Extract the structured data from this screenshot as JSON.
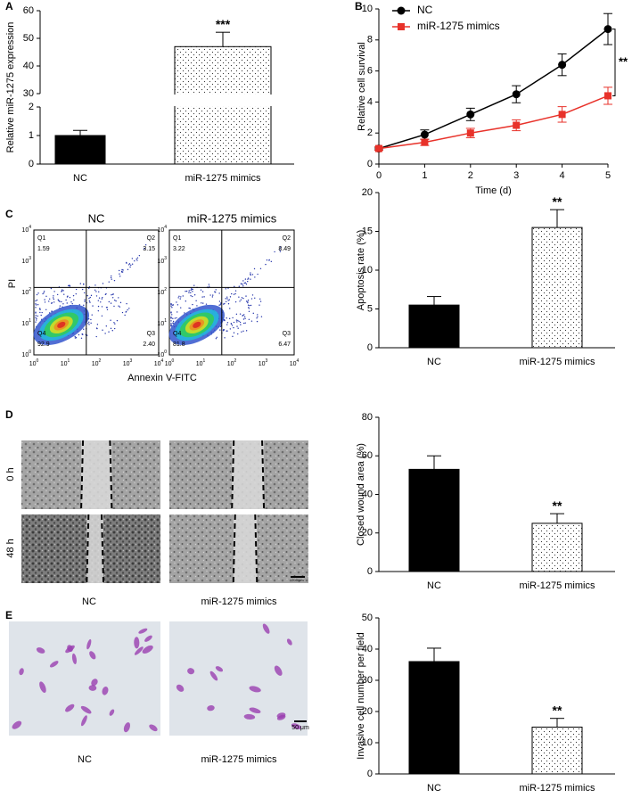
{
  "panel_labels": [
    "A",
    "B",
    "C",
    "D",
    "E"
  ],
  "chart_data": [
    {
      "type": "bar",
      "ylabel": "Relative miR-1275 expression",
      "categories": [
        "NC",
        "miR-1275 mimics"
      ],
      "values": [
        1,
        47
      ],
      "errors": [
        0.18,
        5.2
      ],
      "colors": [
        "#000000",
        "#ffffff"
      ],
      "patterns": [
        "solid",
        "dots"
      ],
      "ylim_segments": [
        [
          0,
          2
        ],
        [
          30,
          60
        ]
      ],
      "yticks": [
        0,
        1,
        2,
        30,
        40,
        50,
        60
      ],
      "significance": "***"
    },
    {
      "type": "line",
      "xlabel": "Time (d)",
      "ylabel": "Relative cell survival",
      "x": [
        0,
        1,
        2,
        3,
        4,
        5
      ],
      "xlim": [
        0,
        5
      ],
      "xticks": [
        0,
        1,
        2,
        3,
        4,
        5
      ],
      "ylim": [
        0,
        10
      ],
      "yticks": [
        0,
        2,
        4,
        6,
        8,
        10
      ],
      "legend": "upper left",
      "significance": "**",
      "series": [
        {
          "name": "NC",
          "color": "#000000",
          "marker": "circle",
          "values": [
            1,
            1.9,
            3.2,
            4.5,
            6.4,
            8.7
          ],
          "errors": [
            0.1,
            0.3,
            0.4,
            0.55,
            0.7,
            1.0
          ]
        },
        {
          "name": "miR-1275 mimics",
          "color": "#e8322a",
          "marker": "square",
          "values": [
            1,
            1.4,
            2.0,
            2.5,
            3.2,
            4.4
          ],
          "errors": [
            0.1,
            0.2,
            0.3,
            0.35,
            0.5,
            0.55
          ]
        }
      ]
    },
    {
      "type": "bar",
      "ylabel": "Apoptosis rate (%)",
      "categories": [
        "NC",
        "miR-1275 mimics"
      ],
      "values": [
        5.5,
        15.5
      ],
      "errors": [
        1.1,
        2.3
      ],
      "colors": [
        "#000000",
        "#ffffff"
      ],
      "patterns": [
        "solid",
        "dots"
      ],
      "ylim": [
        0,
        20
      ],
      "yticks": [
        0,
        5,
        10,
        15,
        20
      ],
      "significance": "**"
    },
    {
      "type": "bar",
      "ylabel": "Closed wound area (%)",
      "categories": [
        "NC",
        "miR-1275 mimics"
      ],
      "values": [
        53,
        25
      ],
      "errors": [
        7,
        5
      ],
      "colors": [
        "#000000",
        "#ffffff"
      ],
      "patterns": [
        "solid",
        "dots"
      ],
      "ylim": [
        0,
        80
      ],
      "yticks": [
        0,
        20,
        40,
        60,
        80
      ],
      "significance": "**"
    },
    {
      "type": "bar",
      "ylabel": "Invasive cell number per field",
      "categories": [
        "NC",
        "miR-1275 mimics"
      ],
      "values": [
        36,
        15
      ],
      "errors": [
        4.3,
        2.8
      ],
      "colors": [
        "#000000",
        "#ffffff"
      ],
      "patterns": [
        "solid",
        "dots"
      ],
      "ylim": [
        0,
        50
      ],
      "yticks": [
        0,
        10,
        20,
        30,
        40,
        50
      ],
      "significance": "**"
    }
  ],
  "flow": {
    "ylabel": "PI",
    "xlabel": "Annexin V-FITC",
    "tick_base": "10",
    "tick_exponents": [
      "0",
      "1",
      "2",
      "3",
      "4"
    ],
    "plots": [
      {
        "title": "NC",
        "quadrants": [
          {
            "label": "Q1",
            "value": "1.59"
          },
          {
            "label": "Q2",
            "value": "3.15"
          },
          {
            "label": "Q4",
            "value": "92.9"
          },
          {
            "label": "Q3",
            "value": "2.40"
          }
        ]
      },
      {
        "title": "miR-1275 mimics",
        "quadrants": [
          {
            "label": "Q1",
            "value": "3.22"
          },
          {
            "label": "Q2",
            "value": "8.49"
          },
          {
            "label": "Q4",
            "value": "81.8"
          },
          {
            "label": "Q3",
            "value": "6.47"
          }
        ]
      }
    ]
  },
  "wound": {
    "rows": [
      "0 h",
      "48 h"
    ],
    "columns": [
      "NC",
      "miR-1275 mimics"
    ],
    "scale": "200 μm"
  },
  "invasion": {
    "columns": [
      "NC",
      "miR-1275 mimics"
    ],
    "scale": "50 μm"
  }
}
